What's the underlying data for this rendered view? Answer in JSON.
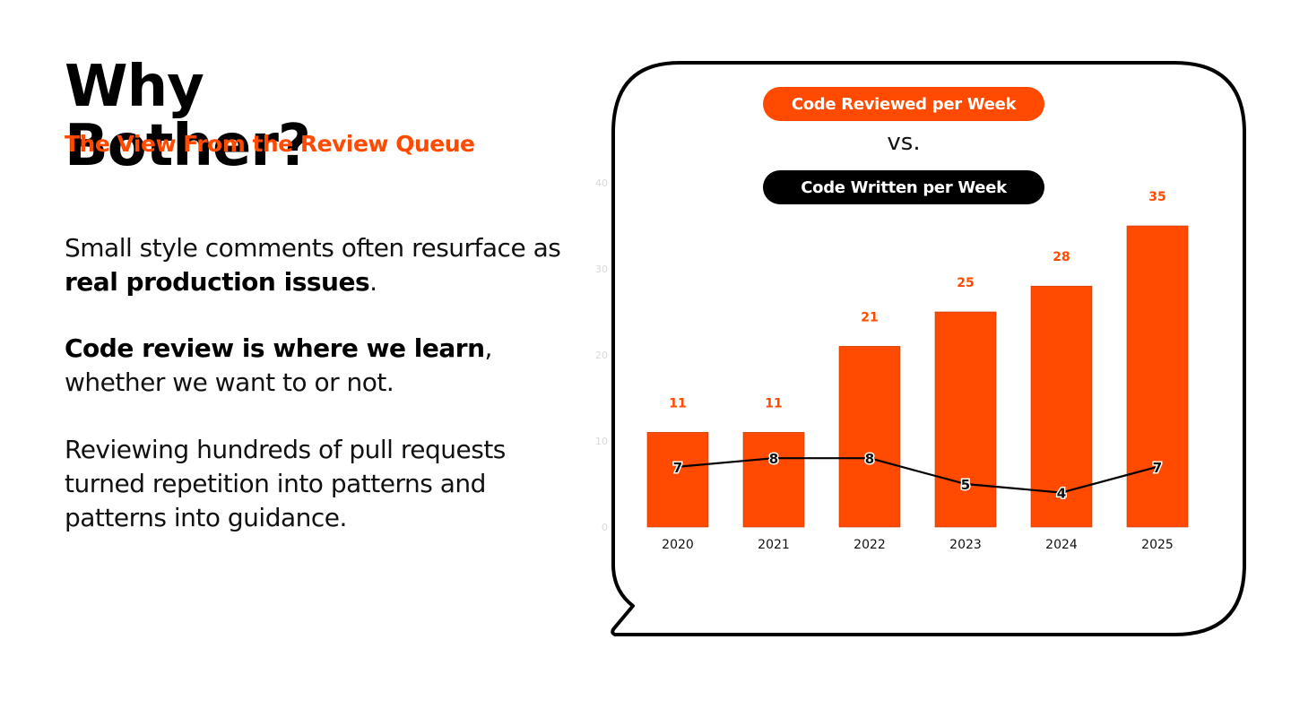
{
  "slide": {
    "title_line1": "Why",
    "title_line2": "Bother?",
    "subtitle": "The View From the Review Queue",
    "para1": {
      "text": "Small style comments often resurface as ",
      "bold": "real production issues",
      "tail": "."
    },
    "para2": {
      "bold": "Code review is where we learn",
      "text": ", whether we want to or not."
    },
    "para3": {
      "text": "Reviewing hundreds of pull requests turned repetition into patterns and patterns into guidance."
    },
    "legend": {
      "reviewed_label": "Code Reviewed per Week",
      "vs": "vs.",
      "written_label": "Code Written per Week"
    }
  },
  "colors": {
    "accent": "#ff4a00",
    "dark": "#000000",
    "bg": "#ffffff"
  },
  "chart_data": {
    "type": "bar",
    "categories": [
      "2020",
      "2021",
      "2022",
      "2023",
      "2024",
      "2025"
    ],
    "series": [
      {
        "type": "bar",
        "values": [
          11,
          11,
          21,
          25,
          28,
          35
        ],
        "color": "#ff4a00"
      },
      {
        "type": "line",
        "values": [
          7,
          8,
          8,
          5,
          4,
          7
        ],
        "color": "#000000"
      }
    ],
    "yticks": [
      0,
      10,
      20,
      30,
      40
    ],
    "ylim": [
      0,
      40
    ],
    "grid": false,
    "legend": "top"
  }
}
